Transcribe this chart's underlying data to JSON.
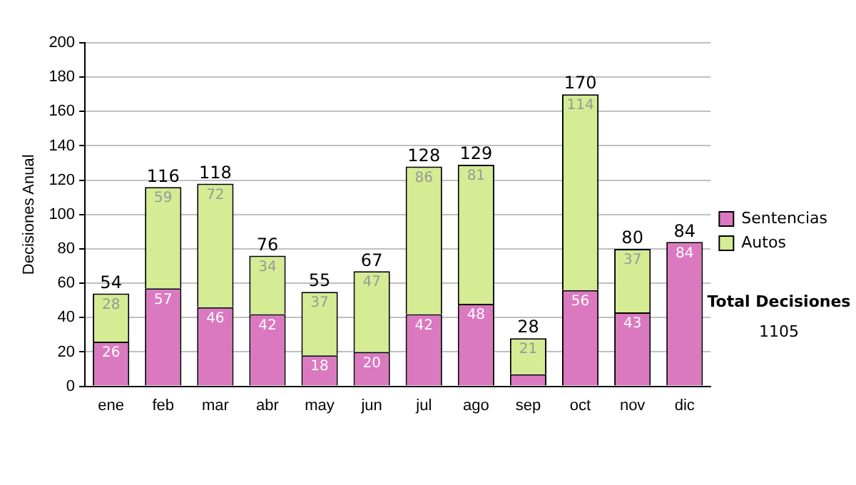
{
  "chart_data": {
    "type": "bar",
    "ylabel": "Decisiones Anual",
    "categories": [
      "ene",
      "feb",
      "mar",
      "abr",
      "may",
      "jun",
      "jul",
      "ago",
      "sep",
      "oct",
      "nov",
      "dic"
    ],
    "stacked": true,
    "series": [
      {
        "name": "Sentencias",
        "color": "#da79c0",
        "values": [
          26,
          57,
          46,
          42,
          18,
          20,
          42,
          48,
          7,
          56,
          43,
          84
        ],
        "value_labels": [
          "26",
          "57",
          "46",
          "42",
          "18",
          "20",
          "42",
          "48",
          null,
          "56",
          "43",
          "84"
        ]
      },
      {
        "name": "Autos",
        "color": "#d5eb94",
        "values": [
          28,
          59,
          72,
          34,
          37,
          47,
          86,
          81,
          21,
          114,
          37,
          0
        ],
        "value_labels": [
          "28",
          "59",
          "72",
          "34",
          "37",
          "47",
          "86",
          "81",
          "21",
          "114",
          "37",
          null
        ]
      }
    ],
    "totals": [
      "54",
      "116",
      "118",
      "76",
      "55",
      "67",
      "128",
      "129",
      "28",
      "170",
      "80",
      "84"
    ],
    "ylim": [
      0,
      200
    ],
    "yticks": [
      0,
      20,
      40,
      60,
      80,
      100,
      120,
      140,
      160,
      180,
      200
    ],
    "grid": "y",
    "legend": "right",
    "annotations": [
      "Total Decisiones",
      "1105"
    ]
  }
}
